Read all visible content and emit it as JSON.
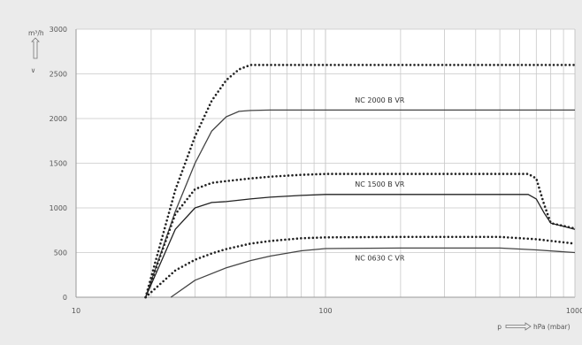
{
  "chart_data": {
    "type": "line",
    "title": "",
    "ylabel": "m³/h",
    "ylabel_arrow_mark": "∨",
    "xlabel": "p",
    "xunit": "hPa (mbar)",
    "xscale": "log",
    "xlim": [
      10,
      1000
    ],
    "ylim": [
      0,
      3000
    ],
    "x_tick_labels": [
      "10",
      "100",
      "1000"
    ],
    "y_tick_labels": [
      "0",
      "500",
      "1000",
      "1500",
      "2000",
      "2500",
      "3000"
    ],
    "y_ticks": [
      0,
      500,
      1000,
      1500,
      2000,
      2500,
      3000
    ],
    "grid": true,
    "background_color": "#ebebeb",
    "plot_background": "#ffffff",
    "series": [
      {
        "name": "",
        "style": "dotted",
        "color": "#222222",
        "x": [
          19,
          25,
          30,
          35,
          40,
          45,
          50,
          60,
          80,
          100,
          200,
          500,
          1000
        ],
        "y": [
          0,
          1200,
          1800,
          2200,
          2430,
          2550,
          2600,
          2600,
          2600,
          2600,
          2600,
          2600,
          2600
        ]
      },
      {
        "name": "NC 2000 B VR",
        "style": "solid",
        "color": "#444444",
        "x": [
          19,
          25,
          30,
          35,
          40,
          45,
          50,
          60,
          80,
          100,
          200,
          500,
          1000
        ],
        "y": [
          0,
          960,
          1500,
          1860,
          2020,
          2080,
          2090,
          2095,
          2095,
          2095,
          2095,
          2095,
          2095
        ]
      },
      {
        "name": "",
        "style": "dotted",
        "color": "#222222",
        "x": [
          19,
          25,
          30,
          35,
          40,
          50,
          60,
          80,
          100,
          200,
          500,
          650,
          700,
          750,
          800,
          1000
        ],
        "y": [
          0,
          930,
          1210,
          1280,
          1300,
          1330,
          1350,
          1370,
          1380,
          1380,
          1380,
          1380,
          1330,
          1050,
          830,
          770
        ]
      },
      {
        "name": "NC 1500 B VR",
        "style": "solid",
        "color": "#222222",
        "x": [
          19,
          25,
          30,
          35,
          40,
          50,
          60,
          80,
          100,
          200,
          500,
          650,
          700,
          750,
          800,
          1000
        ],
        "y": [
          0,
          760,
          1000,
          1060,
          1070,
          1100,
          1120,
          1140,
          1150,
          1150,
          1150,
          1150,
          1100,
          950,
          830,
          760
        ]
      },
      {
        "name": "",
        "style": "dotted",
        "color": "#222222",
        "x": [
          19,
          25,
          30,
          35,
          40,
          50,
          60,
          80,
          100,
          200,
          500,
          700,
          1000
        ],
        "y": [
          0,
          300,
          420,
          490,
          540,
          600,
          630,
          660,
          670,
          675,
          675,
          650,
          600
        ]
      },
      {
        "name": "NC 0630 C VR",
        "style": "solid",
        "color": "#444444",
        "x": [
          24,
          30,
          40,
          50,
          60,
          80,
          100,
          200,
          500,
          700,
          1000
        ],
        "y": [
          0,
          190,
          330,
          410,
          460,
          520,
          545,
          550,
          550,
          530,
          500
        ]
      }
    ],
    "series_labels": [
      {
        "text": "NC 2000 B VR",
        "x": 165,
        "y": 2180
      },
      {
        "text": "NC 1500 B VR",
        "x": 165,
        "y": 1240
      },
      {
        "text": "NC 0630 C VR",
        "x": 165,
        "y": 410
      }
    ]
  }
}
